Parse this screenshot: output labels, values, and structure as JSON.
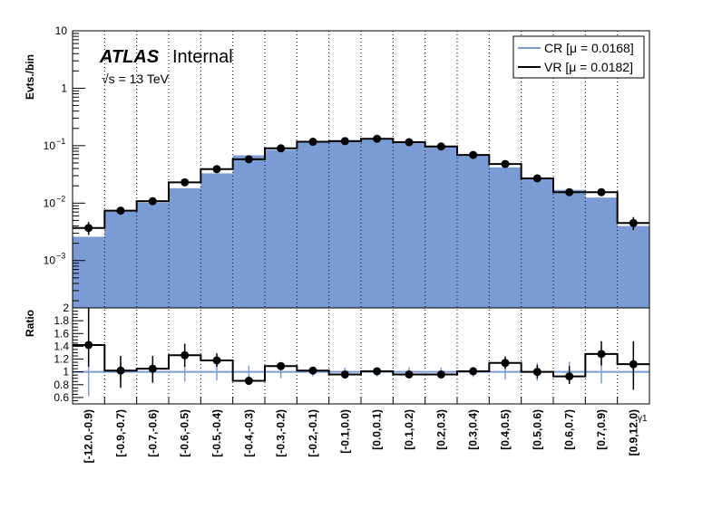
{
  "chart_data": [
    {
      "type": "histogram",
      "panel": "main",
      "ylabel": "Evts./bin",
      "yscale": "log",
      "ylim": [
        0.00015,
        10
      ],
      "yticks": [
        {
          "value": 10,
          "label": "10"
        },
        {
          "value": 1,
          "label": "1"
        },
        {
          "value": 0.1,
          "label": "10",
          "exp": "−1"
        },
        {
          "value": 0.01,
          "label": "10",
          "exp": "−2"
        },
        {
          "value": 0.001,
          "label": "10",
          "exp": "−3"
        }
      ],
      "categories": [
        "[-12.0,-0.9)",
        "[-0.9,-0.7)",
        "[-0.7,-0.6)",
        "[-0.6,-0.5)",
        "[-0.5,-0.4)",
        "[-0.4,-0.3)",
        "[-0.3,-0.2)",
        "[-0.2,-0.1)",
        "[-0.1,0.0)",
        "[0.0,0.1)",
        "[0.1,0.2)",
        "[0.2,0.3)",
        "[0.3,0.4)",
        "[0.4,0.5)",
        "[0.5,0.6)",
        "[0.6,0.7)",
        "[0.7,0.9)",
        "[0.9,12.0)"
      ],
      "series": [
        {
          "name": "CR [μ = 0.0168]",
          "style": "filled",
          "color": "#7a9bd3",
          "values": [
            0.0026,
            0.0072,
            0.0103,
            0.0182,
            0.033,
            0.068,
            0.085,
            0.115,
            0.125,
            0.13,
            0.12,
            0.1,
            0.068,
            0.042,
            0.027,
            0.017,
            0.0125,
            0.004
          ]
        },
        {
          "name": "VR [μ = 0.0182]",
          "style": "step",
          "color": "#000000",
          "values": [
            0.0037,
            0.0074,
            0.0108,
            0.023,
            0.039,
            0.058,
            0.09,
            0.117,
            0.12,
            0.132,
            0.115,
            0.097,
            0.069,
            0.048,
            0.027,
            0.0155,
            0.0155,
            0.0045
          ],
          "errors_low": [
            0.0028,
            0.0064,
            0.0096,
            0.0212,
            0.0365,
            0.0555,
            0.0865,
            0.1135,
            0.1165,
            0.1285,
            0.1115,
            0.0935,
            0.066,
            0.0455,
            0.0255,
            0.0142,
            0.014,
            0.0034
          ],
          "errors_high": [
            0.0047,
            0.0085,
            0.0121,
            0.0249,
            0.0416,
            0.0605,
            0.0935,
            0.1205,
            0.1235,
            0.1355,
            0.1185,
            0.1005,
            0.072,
            0.0505,
            0.0285,
            0.0169,
            0.0171,
            0.0057
          ]
        }
      ],
      "annotations": {
        "atlas": "ATLAS",
        "internal": "Internal",
        "energy_sqrt": "√s",
        "energy_rest": " = 13 TeV"
      },
      "legend_position": "top-right"
    },
    {
      "type": "histogram",
      "panel": "ratio",
      "ylabel": "Ratio",
      "xlabel": "γ1",
      "ylim": [
        0.5,
        2.0
      ],
      "yticks": [
        0.6,
        0.8,
        1,
        1.2,
        1.4,
        1.6,
        1.8,
        2
      ],
      "ytick_labels": [
        "0.6",
        "0.8",
        "1",
        "1.2",
        "1.4",
        "1.6",
        "1.8",
        "2"
      ],
      "reference_line": 1.0,
      "reference_band": {
        "low": [
          0.62,
          0.85,
          0.85,
          0.85,
          0.87,
          0.9,
          0.9,
          0.93,
          0.93,
          0.93,
          0.93,
          0.93,
          0.92,
          0.88,
          0.86,
          0.84,
          0.82,
          0.82
        ],
        "high": [
          1.38,
          1.15,
          1.15,
          1.15,
          1.13,
          1.1,
          1.1,
          1.07,
          1.07,
          1.07,
          1.07,
          1.07,
          1.08,
          1.12,
          1.14,
          1.16,
          1.18,
          1.18
        ]
      },
      "values": [
        1.42,
        1.02,
        1.05,
        1.26,
        1.18,
        0.86,
        1.09,
        1.02,
        0.96,
        1.01,
        0.96,
        0.96,
        1.01,
        1.14,
        1.0,
        0.93,
        1.28,
        1.12
      ],
      "errors_low": [
        1.08,
        0.75,
        0.83,
        1.08,
        1.08,
        0.8,
        1.03,
        0.99,
        0.93,
        0.98,
        0.93,
        0.93,
        0.97,
        1.05,
        0.9,
        0.81,
        1.1,
        0.72
      ],
      "errors_high": [
        2.0,
        1.25,
        1.25,
        1.44,
        1.29,
        0.93,
        1.15,
        1.05,
        0.99,
        1.04,
        0.99,
        0.99,
        1.06,
        1.24,
        1.11,
        1.09,
        1.48,
        1.48
      ]
    }
  ]
}
